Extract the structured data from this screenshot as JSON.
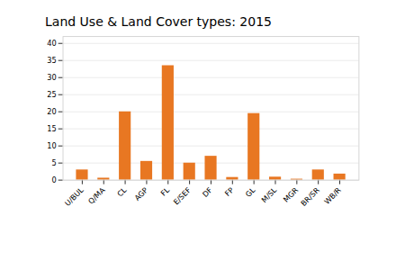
{
  "chart_data": {
    "type": "bar",
    "title": "Land Use & Land Cover types: 2015",
    "categories": [
      "U/BUL",
      "Q/MA",
      "CL",
      "AGP",
      "FL",
      "E/SEF",
      "DF",
      "FP",
      "GL",
      "M/SL",
      "MGR",
      "BR/SR",
      "WB/R"
    ],
    "values": [
      3.0,
      0.6,
      20.0,
      5.5,
      33.5,
      5.0,
      7.0,
      0.8,
      19.5,
      0.9,
      0.3,
      3.0,
      1.8
    ],
    "color": "#E87722",
    "ylim": [
      0,
      42
    ],
    "yticks": [
      0,
      5,
      10,
      15,
      20,
      25,
      30,
      35,
      40
    ],
    "grid": true
  }
}
